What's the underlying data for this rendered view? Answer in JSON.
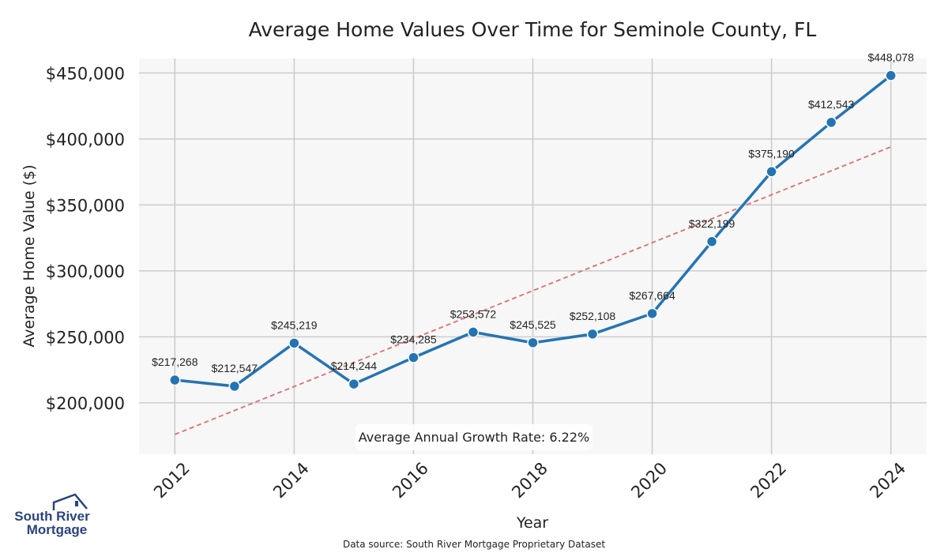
{
  "chart_data": {
    "type": "line",
    "title": "Average Home Values Over Time for Seminole County, FL",
    "xlabel": "Year",
    "ylabel": "Average Home Value ($)",
    "x": [
      2012,
      2013,
      2014,
      2015,
      2016,
      2017,
      2018,
      2019,
      2020,
      2021,
      2022,
      2023,
      2024
    ],
    "values": [
      217268,
      212547,
      245219,
      214244,
      234285,
      253572,
      245525,
      252108,
      267664,
      322199,
      375190,
      412543,
      448078
    ],
    "data_labels": [
      "$217,268",
      "$212,547",
      "$245,219",
      "$214,244",
      "$234,285",
      "$253,572",
      "$245,525",
      "$252,108",
      "$267,664",
      "$322,199",
      "$375,190",
      "$412,543",
      "$448,078"
    ],
    "xticks": [
      "2012",
      "2014",
      "2016",
      "2018",
      "2020",
      "2022",
      "2024"
    ],
    "yticks": [
      "$200,000",
      "$250,000",
      "$300,000",
      "$350,000",
      "$400,000",
      "$450,000"
    ],
    "ytick_values": [
      200000,
      250000,
      300000,
      350000,
      400000,
      450000
    ],
    "xlim": [
      2011.4,
      2024.6
    ],
    "ylim": [
      161000,
      461000
    ],
    "trend_line": {
      "x": [
        2012,
        2024
      ],
      "y": [
        176000,
        394000
      ]
    },
    "grid": true,
    "annotation": "Average Annual Growth Rate: 6.22%",
    "source": "Data source: South River Mortgage Proprietary Dataset",
    "colors": {
      "line": "#2474b4",
      "trend": "#d97070",
      "plot_bg": "#f7f7f7",
      "grid": "#cccccc"
    }
  },
  "logo": {
    "line1": "South River",
    "line2": "Mortgage"
  }
}
